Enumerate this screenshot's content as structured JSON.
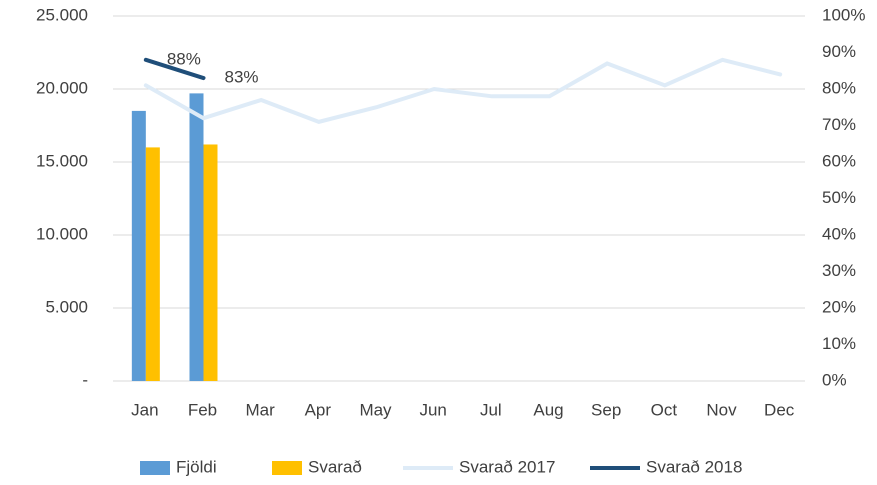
{
  "chart_data": {
    "type": "bar_line",
    "categories": [
      "Jan",
      "Feb",
      "Mar",
      "Apr",
      "May",
      "Jun",
      "Jul",
      "Aug",
      "Sep",
      "Oct",
      "Nov",
      "Dec"
    ],
    "series": [
      {
        "name": "Fjöldi",
        "type": "bar",
        "color": "#5b9bd5",
        "values": [
          18500,
          19700,
          null,
          null,
          null,
          null,
          null,
          null,
          null,
          null,
          null,
          null
        ]
      },
      {
        "name": "Svarað",
        "type": "bar",
        "color": "#ffc000",
        "values": [
          16000,
          16200,
          null,
          null,
          null,
          null,
          null,
          null,
          null,
          null,
          null,
          null
        ]
      },
      {
        "name": "Svarað 2017",
        "type": "line",
        "axis": "y2",
        "color": "#deebf7",
        "values": [
          81,
          72,
          77,
          71,
          75,
          80,
          78,
          78,
          87,
          81,
          88,
          84
        ]
      },
      {
        "name": "Svarað 2018",
        "type": "line",
        "axis": "y2",
        "color": "#1f4e79",
        "values": [
          88,
          83,
          null,
          null,
          null,
          null,
          null,
          null,
          null,
          null,
          null,
          null
        ],
        "value_labels": [
          "88%",
          "83%",
          null,
          null,
          null,
          null,
          null,
          null,
          null,
          null,
          null,
          null
        ]
      }
    ],
    "ylim": [
      0,
      25000
    ],
    "yticks": [
      {
        "value": 0,
        "label": "-"
      },
      {
        "value": 5000,
        "label": "5.000"
      },
      {
        "value": 10000,
        "label": "10.000"
      },
      {
        "value": 15000,
        "label": "15.000"
      },
      {
        "value": 20000,
        "label": "20.000"
      },
      {
        "value": 25000,
        "label": "25.000"
      }
    ],
    "y2lim": [
      0,
      100
    ],
    "y2ticks": [
      {
        "value": 0,
        "label": "0%"
      },
      {
        "value": 10,
        "label": "10%"
      },
      {
        "value": 20,
        "label": "20%"
      },
      {
        "value": 30,
        "label": "30%"
      },
      {
        "value": 40,
        "label": "40%"
      },
      {
        "value": 50,
        "label": "50%"
      },
      {
        "value": 60,
        "label": "60%"
      },
      {
        "value": 70,
        "label": "70%"
      },
      {
        "value": 80,
        "label": "80%"
      },
      {
        "value": 90,
        "label": "90%"
      },
      {
        "value": 100,
        "label": "100%"
      }
    ],
    "grid": true,
    "legend": "bottom"
  }
}
